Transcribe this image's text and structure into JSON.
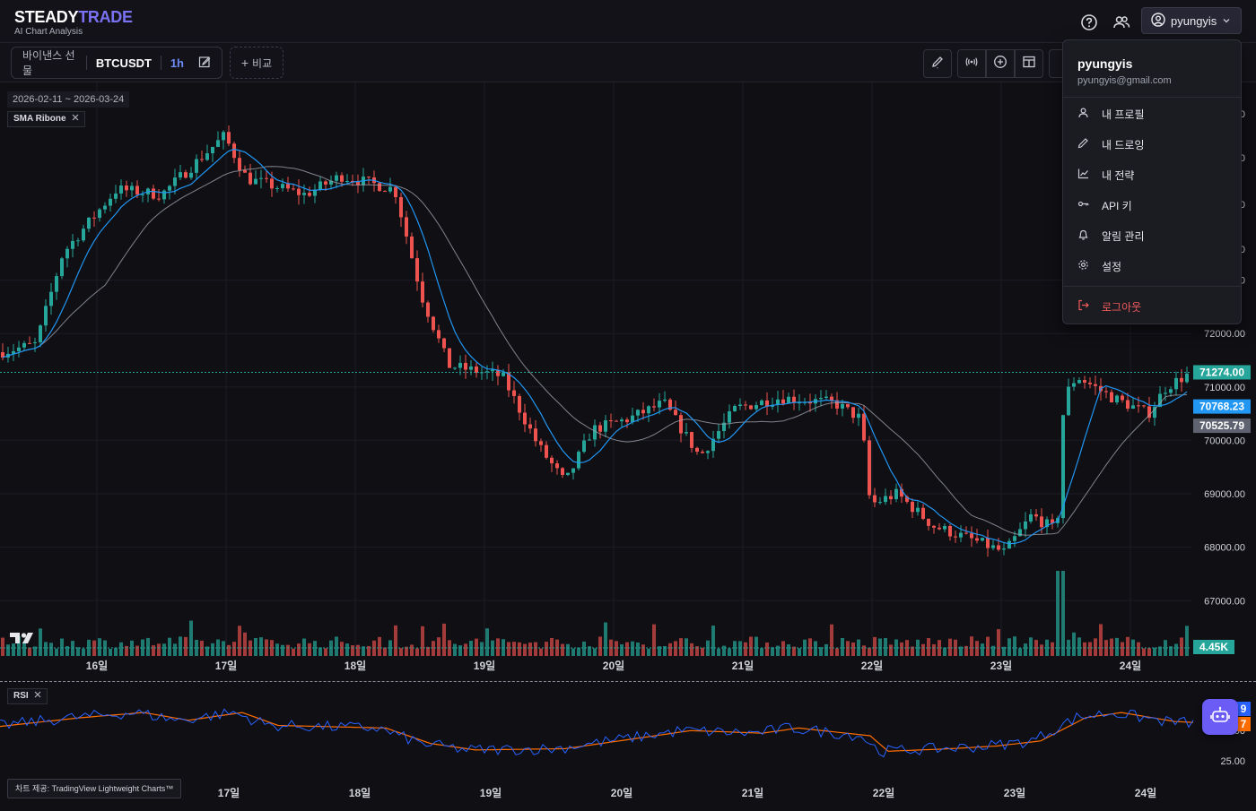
{
  "app": {
    "logo_primary": "STEADY",
    "logo_accent": "TRADE",
    "subtitle": "AI Chart Analysis"
  },
  "header": {
    "help_icon": "help-circle-icon",
    "community_icon": "users-icon",
    "username": "pyungyis"
  },
  "toolbar": {
    "exchange": "바이낸스 선물",
    "symbol": "BTCUSDT",
    "timeframe": "1h",
    "compare_label": "비교"
  },
  "chart": {
    "date_range": "2026-02-11 ~ 2026-03-24",
    "indicator_tag": "SMA Ribone",
    "rsi_tag": "RSI",
    "credit": "차트 제공: TradingView Lightweight Charts™"
  },
  "user_menu": {
    "name": "pyungyis",
    "email": "pyungyis@gmail.com",
    "items": [
      {
        "label": "내 프로필",
        "icon": "user-icon"
      },
      {
        "label": "내 드로잉",
        "icon": "pencil-icon"
      },
      {
        "label": "내 전략",
        "icon": "chart-line-icon"
      },
      {
        "label": "API 키",
        "icon": "key-icon"
      },
      {
        "label": "알림 관리",
        "icon": "bell-icon"
      },
      {
        "label": "설정",
        "icon": "gear-icon"
      }
    ],
    "logout": "로그아웃"
  },
  "chart_data": {
    "type": "candlestick",
    "price_axis": {
      "ticks": [
        "73000.00",
        "72000.00",
        "71000.00",
        "70000.00",
        "69000.00",
        "68000.00",
        "67000.00"
      ],
      "partial_ticks": [
        "0",
        "0",
        "0",
        "0"
      ],
      "ylim": [
        66300,
        76700
      ]
    },
    "time_axis": [
      "16일",
      "17일",
      "18일",
      "19일",
      "20일",
      "21일",
      "22일",
      "23일",
      "24일"
    ],
    "rsi_time_axis": [
      "17일",
      "18일",
      "19일",
      "20일",
      "21일",
      "22일",
      "23일",
      "24일"
    ],
    "price_labels": [
      {
        "value": "71274.00",
        "color": "#26a69a"
      },
      {
        "value": "70768.23",
        "color": "#2196f3"
      },
      {
        "value": "70525.79",
        "color": "#5f6270"
      }
    ],
    "volume_label": {
      "value": "4.45K",
      "color": "#26a69a"
    },
    "rsi_axis": {
      "ticks": [
        "50.00",
        "25.00"
      ],
      "ylim": [
        0,
        75
      ]
    },
    "rsi_labels": [
      {
        "value": "9",
        "color": "#2962ff"
      },
      {
        "value": "7",
        "color": "#ff6d00"
      }
    ],
    "colors": {
      "up": "#26a69a",
      "down": "#ef5350",
      "fast_ma": "#2196f3",
      "slow_ma": "#9ea1ad",
      "rsi": "#2962ff",
      "rsi_signal": "#ff6d00"
    },
    "candles": [
      {
        "day": "15일",
        "close": 71650
      },
      {
        "day": "16일",
        "open": 71650,
        "close": 74200,
        "high": 74500,
        "low": 71300
      },
      {
        "day": "17일",
        "open": 74200,
        "close": 75500,
        "high": 76000,
        "low": 73600
      },
      {
        "day": "17일",
        "open": 75500,
        "close": 74900,
        "high": 75700,
        "low": 73900
      },
      {
        "day": "18일",
        "open": 74900,
        "close": 74700,
        "high": 75200,
        "low": 73500
      },
      {
        "day": "18일",
        "open": 74700,
        "close": 71300,
        "high": 74900,
        "low": 70800
      },
      {
        "day": "19일",
        "open": 71300,
        "close": 69300,
        "high": 71700,
        "low": 68800
      },
      {
        "day": "20일",
        "open": 69300,
        "close": 70800,
        "high": 71400,
        "low": 69100
      },
      {
        "day": "21일",
        "open": 70800,
        "close": 70400,
        "high": 71100,
        "low": 69600
      },
      {
        "day": "21일",
        "open": 70400,
        "close": 70600,
        "high": 71000,
        "low": 70100
      },
      {
        "day": "22일",
        "open": 70600,
        "close": 68800,
        "high": 70700,
        "low": 68300
      },
      {
        "day": "23일",
        "open": 68800,
        "close": 67900,
        "high": 69000,
        "low": 67300
      },
      {
        "day": "23일",
        "open": 67900,
        "close": 71200,
        "high": 71800,
        "low": 67700
      },
      {
        "day": "24일",
        "open": 71200,
        "close": 71274,
        "high": 71400,
        "low": 70300
      }
    ]
  }
}
